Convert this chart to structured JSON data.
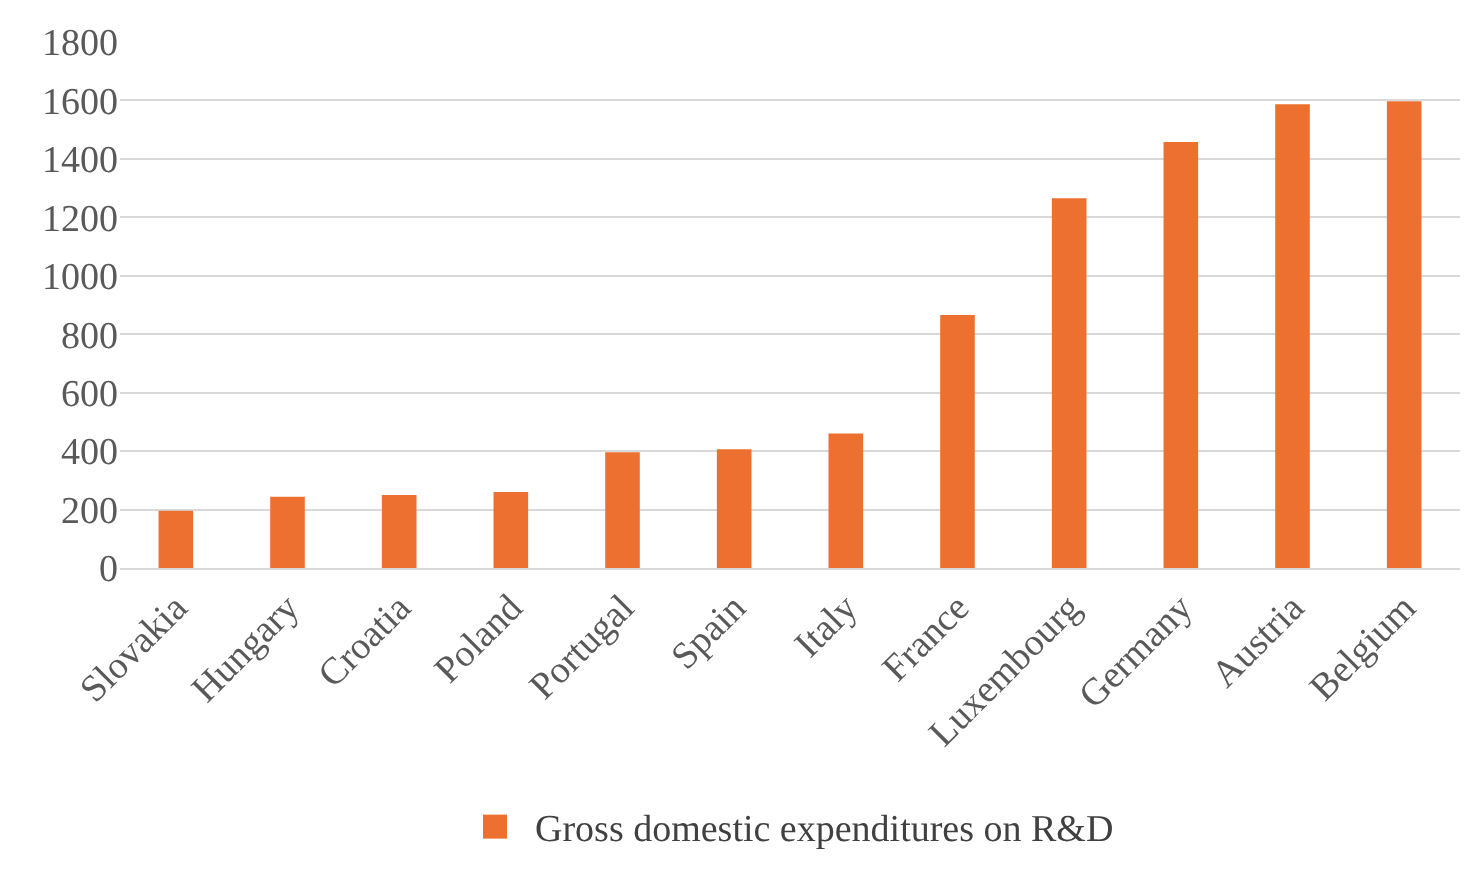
{
  "chart_data": {
    "type": "bar",
    "categories": [
      "Slovakia",
      "Hungary",
      "Croatia",
      "Poland",
      "Portugal",
      "Spain",
      "Italy",
      "France",
      "Luxembourg",
      "Germany",
      "Austria",
      "Belgium"
    ],
    "series": [
      {
        "name": "Gross domestic expenditures on R&D",
        "color": "#ed7031",
        "values": [
          196,
          244,
          250,
          260,
          396,
          406,
          460,
          866,
          1265,
          1458,
          1587,
          1597
        ]
      }
    ],
    "ylim": [
      0,
      1800
    ],
    "yticks": [
      0,
      200,
      400,
      600,
      800,
      1000,
      1200,
      1400,
      1600,
      1800
    ],
    "grid": "y",
    "legend": "bottom"
  }
}
